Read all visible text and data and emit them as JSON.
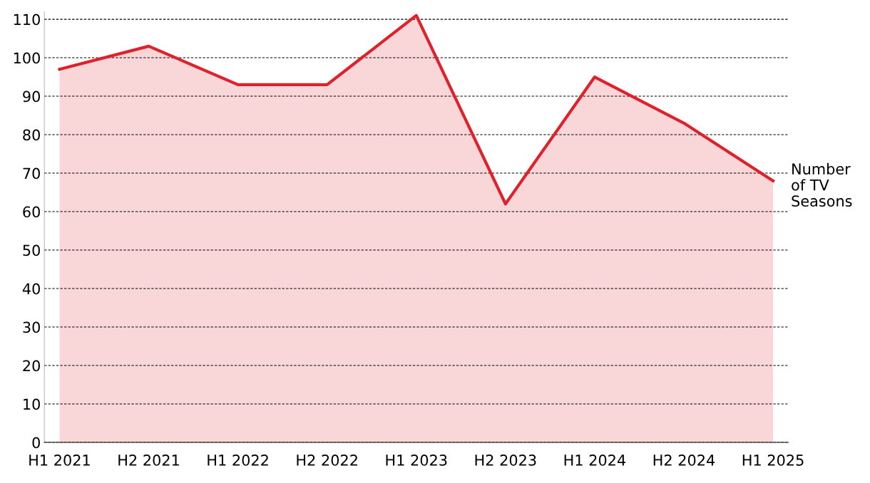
{
  "chart_data": {
    "type": "area",
    "categories": [
      "H1 2021",
      "H2 2021",
      "H1 2022",
      "H2 2022",
      "H1 2023",
      "H2 2023",
      "H1 2024",
      "H2 2024",
      "H1 2025"
    ],
    "series": [
      {
        "name": "Number of TV Seasons",
        "color": "#e0202a",
        "values": [
          97,
          103,
          93,
          93,
          111,
          62,
          95,
          83,
          68
        ]
      }
    ],
    "ylim": [
      0,
      112
    ],
    "yticks": [
      0,
      10,
      20,
      30,
      40,
      50,
      60,
      70,
      80,
      90,
      100,
      110
    ],
    "grid": "y",
    "legend": false,
    "marker": "none",
    "line_style": "solid"
  }
}
